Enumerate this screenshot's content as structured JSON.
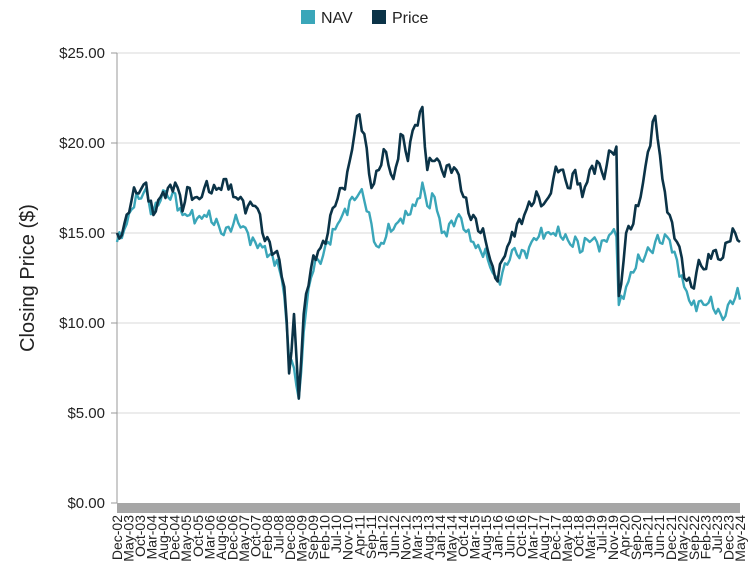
{
  "chart_data": {
    "type": "line",
    "title": "",
    "xlabel": "",
    "ylabel": "Closing Price ($)",
    "ylim": [
      0,
      25
    ],
    "xlim": [
      "2002-12",
      "2024-05"
    ],
    "y_ticks": [
      "$0.00",
      "$5.00",
      "$10.00",
      "$15.00",
      "$20.00",
      "$25.00"
    ],
    "y_tick_values": [
      0,
      5,
      10,
      15,
      20,
      25
    ],
    "x_tick_labels": [
      "Dec-02",
      "May-03",
      "Oct-03",
      "Mar-04",
      "Aug-04",
      "Dec-04",
      "May-05",
      "Oct-05",
      "Mar-06",
      "Aug-06",
      "Dec-06",
      "May-07",
      "Oct-07",
      "Feb-08",
      "Jul-08",
      "Dec-08",
      "May-09",
      "Sep-09",
      "Feb-10",
      "Jul-10",
      "Nov-10",
      "Apr-11",
      "Sep-11",
      "Jan-12",
      "Jun-12",
      "Nov-12",
      "Mar-13",
      "Aug-13",
      "Jan-14",
      "May-14",
      "Oct-14",
      "Mar-15",
      "Aug-15",
      "Jan-16",
      "Jun-16",
      "Oct-16",
      "Mar-17",
      "Aug-17",
      "Dec-17",
      "May-18",
      "Oct-18",
      "Mar-19",
      "Jul-19",
      "Nov-19",
      "Apr-20",
      "Sep-20",
      "Jan-21",
      "Jun-21",
      "Dec-21",
      "May-22",
      "Sep-22",
      "Feb-23",
      "Jul-23",
      "Dec-23",
      "May-24"
    ],
    "grid": "horizontal",
    "legend_position": "top-center",
    "series": [
      {
        "name": "NAV",
        "color": "#3aa6b9",
        "points": [
          [
            "2002-12",
            14.5
          ],
          [
            "2003-03",
            15.2
          ],
          [
            "2003-06",
            16.3
          ],
          [
            "2003-09",
            16.9
          ],
          [
            "2003-12",
            17.5
          ],
          [
            "2004-03",
            16.2
          ],
          [
            "2004-06",
            16.8
          ],
          [
            "2004-09",
            17.0
          ],
          [
            "2004-12",
            17.2
          ],
          [
            "2005-03",
            16.0
          ],
          [
            "2005-06",
            16.0
          ],
          [
            "2005-09",
            15.8
          ],
          [
            "2005-12",
            16.0
          ],
          [
            "2006-03",
            15.6
          ],
          [
            "2006-06",
            15.4
          ],
          [
            "2006-09",
            15.3
          ],
          [
            "2006-12",
            15.5
          ],
          [
            "2007-03",
            15.3
          ],
          [
            "2007-06",
            15.0
          ],
          [
            "2007-09",
            14.5
          ],
          [
            "2007-12",
            14.2
          ],
          [
            "2008-03",
            13.8
          ],
          [
            "2008-06",
            13.5
          ],
          [
            "2008-09",
            11.5
          ],
          [
            "2008-11",
            8.0
          ],
          [
            "2009-01",
            7.5
          ],
          [
            "2009-03",
            5.8
          ],
          [
            "2009-05",
            9.5
          ],
          [
            "2009-08",
            12.5
          ],
          [
            "2009-11",
            13.5
          ],
          [
            "2010-03",
            14.5
          ],
          [
            "2010-06",
            15.2
          ],
          [
            "2010-09",
            16.0
          ],
          [
            "2010-12",
            16.8
          ],
          [
            "2011-03",
            17.0
          ],
          [
            "2011-06",
            16.8
          ],
          [
            "2011-09",
            15.5
          ],
          [
            "2011-12",
            14.2
          ],
          [
            "2012-03",
            14.8
          ],
          [
            "2012-06",
            15.2
          ],
          [
            "2012-09",
            15.8
          ],
          [
            "2012-12",
            16.0
          ],
          [
            "2013-03",
            16.5
          ],
          [
            "2013-06",
            17.8
          ],
          [
            "2013-08",
            16.5
          ],
          [
            "2013-11",
            17.0
          ],
          [
            "2014-02",
            15.0
          ],
          [
            "2014-05",
            15.5
          ],
          [
            "2014-08",
            15.8
          ],
          [
            "2014-11",
            15.2
          ],
          [
            "2015-03",
            14.5
          ],
          [
            "2015-06",
            14.0
          ],
          [
            "2015-09",
            13.5
          ],
          [
            "2015-12",
            12.6
          ],
          [
            "2016-03",
            12.8
          ],
          [
            "2016-06",
            13.5
          ],
          [
            "2016-09",
            13.8
          ],
          [
            "2016-12",
            14.0
          ],
          [
            "2017-03",
            14.5
          ],
          [
            "2017-06",
            14.8
          ],
          [
            "2017-09",
            15.0
          ],
          [
            "2017-12",
            15.0
          ],
          [
            "2018-03",
            14.8
          ],
          [
            "2018-06",
            14.6
          ],
          [
            "2018-09",
            14.8
          ],
          [
            "2018-12",
            14.0
          ],
          [
            "2019-03",
            14.5
          ],
          [
            "2019-06",
            14.5
          ],
          [
            "2019-09",
            14.6
          ],
          [
            "2019-12",
            15.0
          ],
          [
            "2020-02",
            14.8
          ],
          [
            "2020-03",
            11.0
          ],
          [
            "2020-06",
            12.0
          ],
          [
            "2020-09",
            12.8
          ],
          [
            "2020-12",
            13.5
          ],
          [
            "2021-03",
            14.2
          ],
          [
            "2021-06",
            14.5
          ],
          [
            "2021-09",
            14.4
          ],
          [
            "2021-12",
            14.6
          ],
          [
            "2022-03",
            13.5
          ],
          [
            "2022-06",
            12.0
          ],
          [
            "2022-09",
            11.0
          ],
          [
            "2022-12",
            11.2
          ],
          [
            "2023-03",
            11.0
          ],
          [
            "2023-06",
            10.8
          ],
          [
            "2023-09",
            10.5
          ],
          [
            "2023-12",
            11.0
          ],
          [
            "2024-03",
            11.4
          ],
          [
            "2024-05",
            11.3
          ]
        ]
      },
      {
        "name": "Price",
        "color": "#0b3347",
        "points": [
          [
            "2002-12",
            15.0
          ],
          [
            "2003-03",
            15.5
          ],
          [
            "2003-06",
            16.8
          ],
          [
            "2003-09",
            17.2
          ],
          [
            "2003-12",
            17.8
          ],
          [
            "2004-03",
            16.0
          ],
          [
            "2004-06",
            17.0
          ],
          [
            "2004-09",
            17.5
          ],
          [
            "2004-12",
            17.8
          ],
          [
            "2005-03",
            16.2
          ],
          [
            "2005-06",
            17.5
          ],
          [
            "2005-09",
            17.0
          ],
          [
            "2005-12",
            17.5
          ],
          [
            "2006-03",
            17.2
          ],
          [
            "2006-06",
            17.5
          ],
          [
            "2006-09",
            18.0
          ],
          [
            "2006-12",
            17.0
          ],
          [
            "2007-03",
            17.0
          ],
          [
            "2007-06",
            16.5
          ],
          [
            "2007-09",
            16.5
          ],
          [
            "2007-12",
            15.0
          ],
          [
            "2008-03",
            14.5
          ],
          [
            "2008-06",
            14.0
          ],
          [
            "2008-09",
            12.0
          ],
          [
            "2008-11",
            7.2
          ],
          [
            "2009-01",
            10.5
          ],
          [
            "2009-03",
            5.8
          ],
          [
            "2009-05",
            10.5
          ],
          [
            "2009-08",
            13.0
          ],
          [
            "2009-11",
            14.0
          ],
          [
            "2010-03",
            15.0
          ],
          [
            "2010-06",
            16.5
          ],
          [
            "2010-09",
            17.5
          ],
          [
            "2010-12",
            19.0
          ],
          [
            "2011-03",
            21.5
          ],
          [
            "2011-06",
            20.5
          ],
          [
            "2011-09",
            17.5
          ],
          [
            "2011-12",
            18.5
          ],
          [
            "2012-03",
            19.5
          ],
          [
            "2012-06",
            18.0
          ],
          [
            "2012-09",
            20.5
          ],
          [
            "2012-12",
            19.0
          ],
          [
            "2013-03",
            21.0
          ],
          [
            "2013-06",
            22.0
          ],
          [
            "2013-08",
            18.5
          ],
          [
            "2013-11",
            19.0
          ],
          [
            "2014-02",
            18.5
          ],
          [
            "2014-05",
            18.8
          ],
          [
            "2014-08",
            18.5
          ],
          [
            "2014-11",
            17.0
          ],
          [
            "2015-03",
            16.0
          ],
          [
            "2015-06",
            15.0
          ],
          [
            "2015-09",
            14.0
          ],
          [
            "2015-12",
            12.5
          ],
          [
            "2016-03",
            13.5
          ],
          [
            "2016-06",
            14.5
          ],
          [
            "2016-09",
            15.5
          ],
          [
            "2016-12",
            16.0
          ],
          [
            "2017-03",
            16.5
          ],
          [
            "2017-06",
            17.0
          ],
          [
            "2017-09",
            16.8
          ],
          [
            "2017-12",
            18.0
          ],
          [
            "2018-03",
            18.5
          ],
          [
            "2018-06",
            17.5
          ],
          [
            "2018-09",
            18.5
          ],
          [
            "2018-12",
            17.0
          ],
          [
            "2019-03",
            18.5
          ],
          [
            "2019-06",
            19.0
          ],
          [
            "2019-09",
            18.0
          ],
          [
            "2019-12",
            19.5
          ],
          [
            "2020-02",
            19.8
          ],
          [
            "2020-03",
            11.5
          ],
          [
            "2020-06",
            15.0
          ],
          [
            "2020-09",
            15.5
          ],
          [
            "2020-12",
            17.0
          ],
          [
            "2021-03",
            19.5
          ],
          [
            "2021-06",
            21.5
          ],
          [
            "2021-09",
            18.0
          ],
          [
            "2021-12",
            16.0
          ],
          [
            "2022-03",
            14.5
          ],
          [
            "2022-06",
            12.5
          ],
          [
            "2022-09",
            12.0
          ],
          [
            "2022-12",
            13.5
          ],
          [
            "2023-03",
            13.0
          ],
          [
            "2023-06",
            14.0
          ],
          [
            "2023-09",
            13.5
          ],
          [
            "2023-12",
            14.5
          ],
          [
            "2024-03",
            15.0
          ],
          [
            "2024-05",
            14.5
          ]
        ]
      }
    ]
  }
}
